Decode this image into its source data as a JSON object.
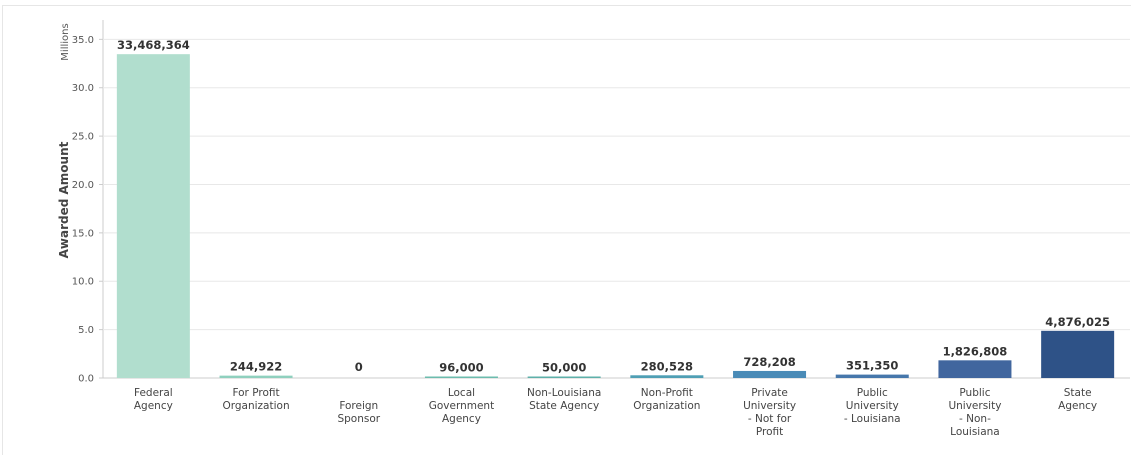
{
  "chart_data": {
    "type": "bar",
    "title": "",
    "xlabel": "",
    "ylabel": "Awarded Amount",
    "units_label": "Millions",
    "ylim": [
      0,
      37
    ],
    "yticks": [
      "0.0",
      "5.0",
      "10.0",
      "15.0",
      "20.0",
      "25.0",
      "30.0",
      "35.0"
    ],
    "ytick_values": [
      0,
      5,
      10,
      15,
      20,
      25,
      30,
      35
    ],
    "grid": true,
    "categories": [
      [
        "Federal",
        "Agency"
      ],
      [
        "For Profit",
        "Organization"
      ],
      [
        "Foreign",
        "Sponsor"
      ],
      [
        "Local",
        "Government",
        "Agency"
      ],
      [
        "Non-Louisiana",
        "State Agency"
      ],
      [
        "Non-Profit",
        "Organization"
      ],
      [
        "Private",
        "University",
        "- Not for",
        "Profit"
      ],
      [
        "Public",
        "University",
        "- Louisiana"
      ],
      [
        "Public",
        "University",
        "- Non-",
        "Louisiana"
      ],
      [
        "State",
        "Agency"
      ]
    ],
    "category_label_offset": [
      0,
      0,
      1,
      0,
      0,
      0,
      0,
      0,
      0,
      0
    ],
    "values": [
      33468364,
      244922,
      0,
      96000,
      50000,
      280528,
      728208,
      351350,
      1826808,
      4876025
    ],
    "value_labels": [
      "33,468,364",
      "244,922",
      "0",
      "96,000",
      "50,000",
      "280,528",
      "728,208",
      "351,350",
      "1,826,808",
      "4,876,025"
    ],
    "colors": [
      "#b1dece",
      "#8fd0be",
      "#7bc7b4",
      "#6cbcae",
      "#5eb0aa",
      "#4f9fb4",
      "#4a8bb7",
      "#4677ab",
      "#41669e",
      "#2e5287"
    ]
  }
}
